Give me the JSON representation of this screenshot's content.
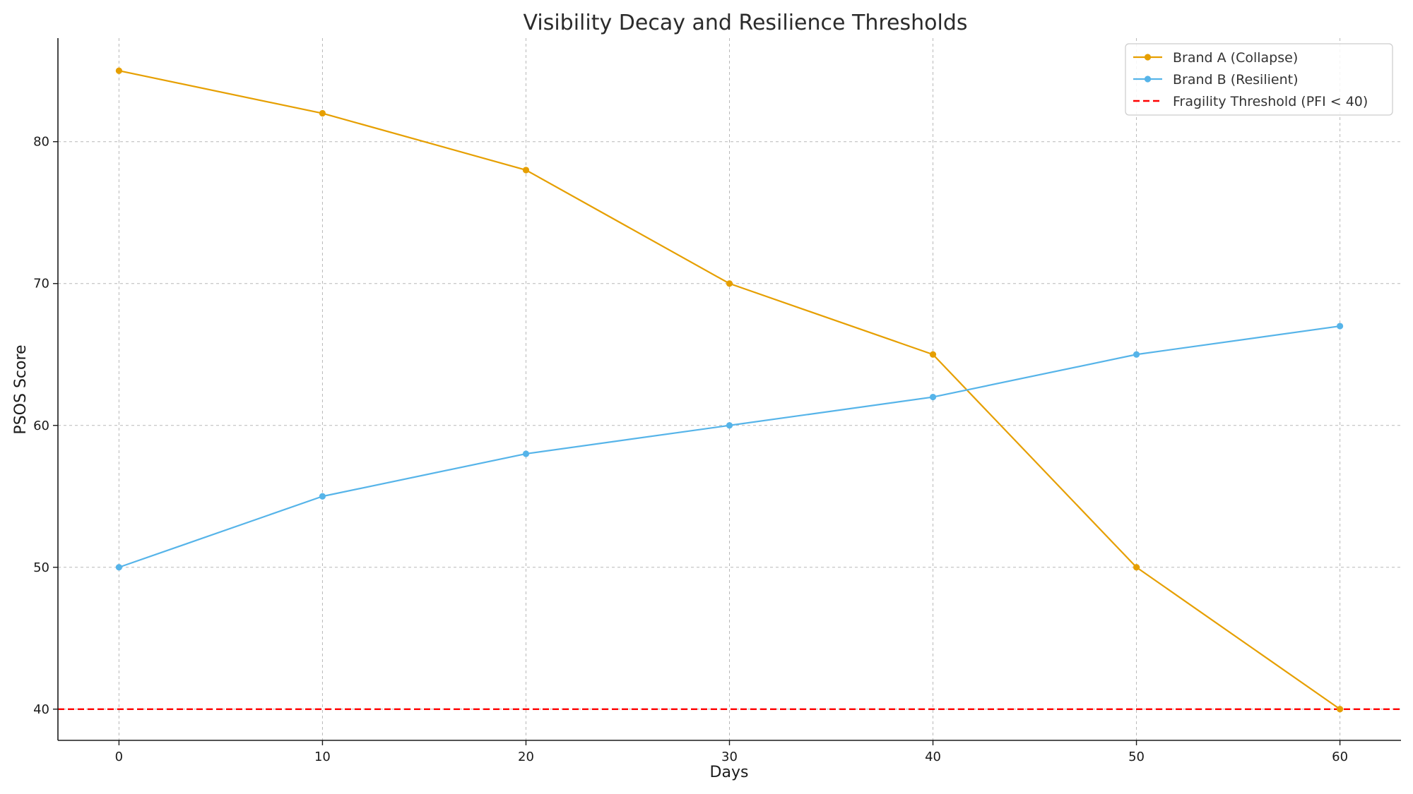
{
  "chart_data": {
    "type": "line",
    "title": "Visibility Decay and Resilience Thresholds",
    "xlabel": "Days",
    "ylabel": "PSOS Score",
    "x": [
      0,
      10,
      20,
      30,
      40,
      50,
      60
    ],
    "xlim": [
      -3,
      63
    ],
    "ylim": [
      37.8,
      87.3
    ],
    "xticks": [
      0,
      10,
      20,
      30,
      40,
      50,
      60
    ],
    "yticks": [
      40,
      50,
      60,
      70,
      80
    ],
    "grid": true,
    "legend_position": "top-right",
    "series": [
      {
        "name": "Brand A (Collapse)",
        "color": "#E69F00",
        "marker": "circle",
        "values": [
          85,
          82,
          78,
          70,
          65,
          50,
          40
        ]
      },
      {
        "name": "Brand B (Resilient)",
        "color": "#56B4E9",
        "marker": "circle",
        "values": [
          50,
          55,
          58,
          60,
          62,
          65,
          67
        ]
      }
    ],
    "reference_lines": [
      {
        "name": "Fragility Threshold (PFI < 40)",
        "orientation": "horizontal",
        "value": 40,
        "color": "#FF0000",
        "style": "dashed"
      }
    ]
  }
}
